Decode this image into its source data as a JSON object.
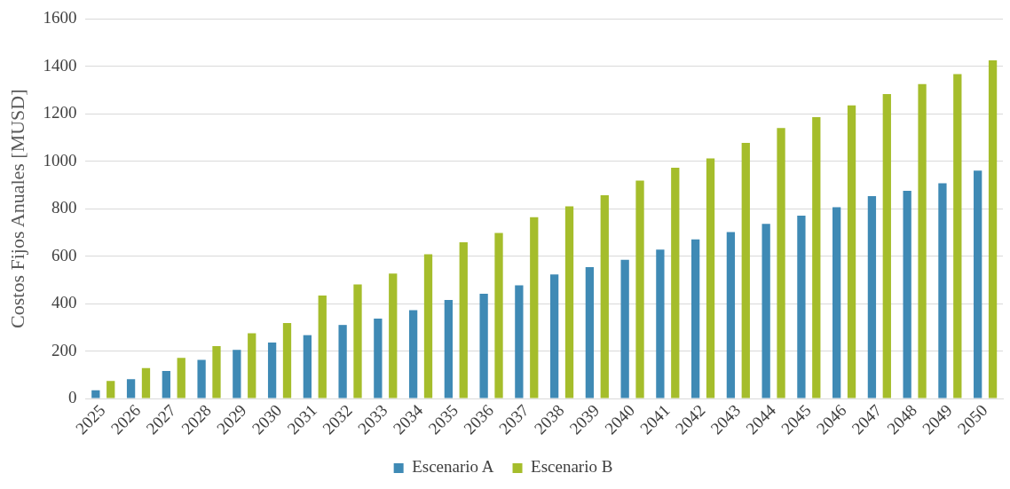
{
  "chart_data": {
    "type": "bar",
    "ylabel": "Costos Fijos Anuales [MUSD]",
    "categories": [
      "2025",
      "2026",
      "2027",
      "2028",
      "2029",
      "2030",
      "2031",
      "2032",
      "2033",
      "2034",
      "2035",
      "2036",
      "2037",
      "2038",
      "2039",
      "2040",
      "2041",
      "2042",
      "2043",
      "2044",
      "2045",
      "2046",
      "2047",
      "2048",
      "2049",
      "2050"
    ],
    "series": [
      {
        "name": "Escenario A",
        "color": "#3f8ab5",
        "values": [
          35,
          81,
          116,
          163,
          205,
          236,
          267,
          310,
          337,
          372,
          415,
          442,
          477,
          523,
          554,
          585,
          628,
          671,
          702,
          736,
          771,
          806,
          853,
          876,
          907,
          961
        ]
      },
      {
        "name": "Escenario B",
        "color": "#a5bd2b",
        "values": [
          74,
          128,
          171,
          221,
          275,
          318,
          434,
          481,
          527,
          608,
          659,
          698,
          764,
          810,
          857,
          919,
          973,
          1012,
          1078,
          1140,
          1186,
          1236,
          1283,
          1326,
          1368,
          1426
        ]
      }
    ],
    "ylim": [
      0,
      1600
    ],
    "yticks": [
      0,
      200,
      400,
      600,
      800,
      1000,
      1200,
      1400,
      1600
    ],
    "grid": "y",
    "legend": "bottom"
  }
}
